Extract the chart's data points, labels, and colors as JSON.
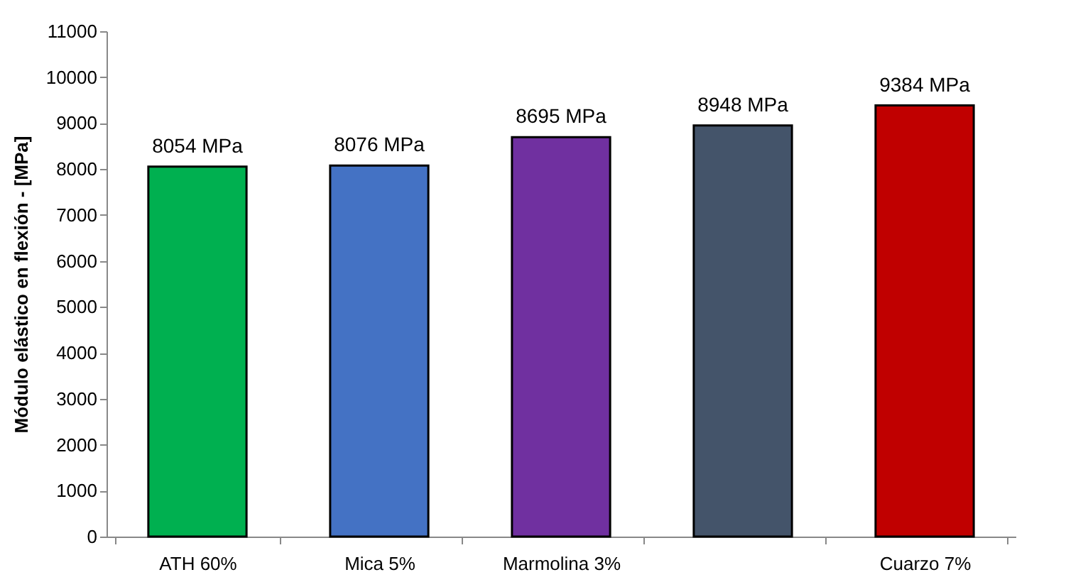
{
  "chart_data": {
    "type": "bar",
    "ylabel": "Módulo elástico en flexión - [MPa]",
    "categories": [
      "ATH 60%",
      "Mica 5%",
      "Marmolina 3%",
      null,
      "Cuarzo 7%"
    ],
    "values": [
      8054,
      8076,
      8695,
      8948,
      9384
    ],
    "colors": [
      "#00b050",
      "#4472c4",
      "#7030a0",
      "#44546a",
      "#c00000"
    ],
    "value_labels": [
      "8054 MPa",
      "8076 MPa",
      "8695 MPa",
      "8948 MPa",
      "9384 MPa"
    ],
    "ylim": [
      0,
      11000
    ],
    "yticks": [
      0,
      1000,
      2000,
      3000,
      4000,
      5000,
      6000,
      7000,
      8000,
      9000,
      10000,
      11000
    ],
    "grid": false
  }
}
